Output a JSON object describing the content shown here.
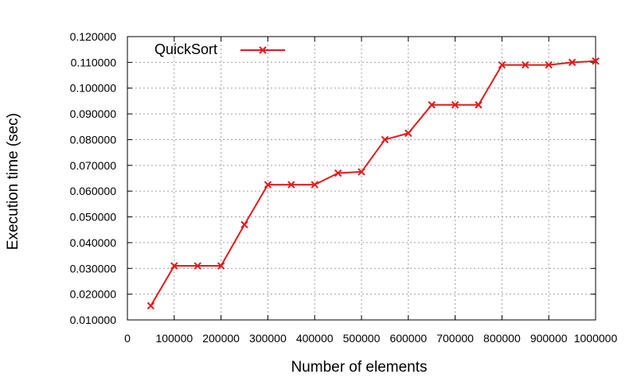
{
  "chart_data": {
    "type": "line",
    "title": "",
    "xlabel": "Number of elements",
    "ylabel": "Execution time (sec)",
    "xlim": [
      0,
      1000000
    ],
    "ylim": [
      0.01,
      0.12
    ],
    "xticks": [
      0,
      100000,
      200000,
      300000,
      400000,
      500000,
      600000,
      700000,
      800000,
      900000,
      1000000
    ],
    "xtick_labels": [
      "0",
      "100000",
      "200000",
      "300000",
      "400000",
      "500000",
      "600000",
      "700000",
      "800000",
      "900000",
      "1000000"
    ],
    "yticks": [
      0.01,
      0.02,
      0.03,
      0.04,
      0.05,
      0.06,
      0.07,
      0.08,
      0.09,
      0.1,
      0.11,
      0.12
    ],
    "ytick_labels": [
      "0.010000",
      "0.020000",
      "0.030000",
      "0.040000",
      "0.050000",
      "0.060000",
      "0.070000",
      "0.080000",
      "0.090000",
      "0.100000",
      "0.110000",
      "0.120000"
    ],
    "grid": true,
    "legend_position": "top-left",
    "marker": "x",
    "series": [
      {
        "name": "QuickSort",
        "color": "#e41a1c",
        "x": [
          50000,
          100000,
          150000,
          200000,
          250000,
          300000,
          350000,
          400000,
          450000,
          500000,
          550000,
          600000,
          650000,
          700000,
          750000,
          800000,
          850000,
          900000,
          950000,
          1000000
        ],
        "y": [
          0.0155,
          0.031,
          0.031,
          0.031,
          0.047,
          0.0625,
          0.0625,
          0.0625,
          0.067,
          0.0675,
          0.08,
          0.0825,
          0.0935,
          0.0935,
          0.0935,
          0.109,
          0.109,
          0.109,
          0.11,
          0.1105
        ]
      }
    ]
  }
}
